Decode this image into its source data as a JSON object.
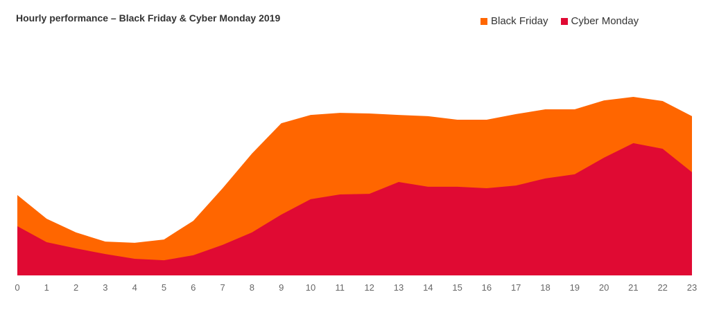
{
  "chart_data": {
    "type": "area",
    "stacked": false,
    "title": "Hourly performance – Black Friday & Cyber Monday 2019",
    "xlabel": "",
    "ylabel": "",
    "x": [
      0,
      1,
      2,
      3,
      4,
      5,
      6,
      7,
      8,
      9,
      10,
      11,
      12,
      13,
      14,
      15,
      16,
      17,
      18,
      19,
      20,
      21,
      22,
      23
    ],
    "x_tick_labels": [
      "0",
      "1",
      "2",
      "3",
      "4",
      "5",
      "6",
      "7",
      "8",
      "9",
      "10",
      "11",
      "12",
      "13",
      "14",
      "15",
      "16",
      "17",
      "18",
      "19",
      "20",
      "21",
      "22",
      "23"
    ],
    "ylim": [
      0,
      100
    ],
    "y_units": "relative index (no y-axis shown)",
    "grid": false,
    "legend_position": "top-right",
    "series": [
      {
        "name": "Black Friday",
        "color": "#ff6600",
        "values": [
          38.7,
          27.3,
          20.7,
          16.3,
          15.7,
          17.3,
          26.3,
          42.0,
          58.7,
          73.3,
          77.3,
          78.3,
          78.0,
          77.3,
          76.7,
          75.0,
          75.0,
          77.7,
          80.0,
          80.0,
          84.3,
          86.0,
          84.0,
          76.7
        ]
      },
      {
        "name": "Cyber Monday",
        "color": "#e00a33",
        "values": [
          23.7,
          16.0,
          13.0,
          10.3,
          8.0,
          7.3,
          9.7,
          14.7,
          20.7,
          29.3,
          36.7,
          39.0,
          39.3,
          45.0,
          42.7,
          42.7,
          42.0,
          43.3,
          46.7,
          48.7,
          56.7,
          63.7,
          61.0,
          49.7
        ]
      }
    ]
  }
}
